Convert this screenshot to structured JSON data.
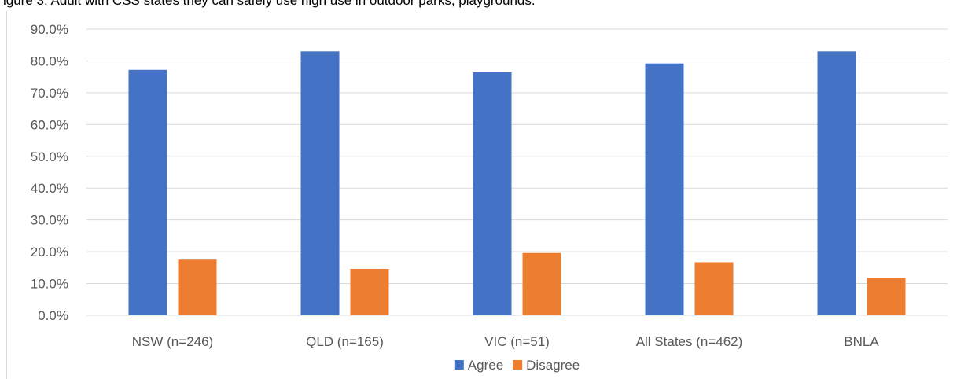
{
  "caption": "igure 3: Adult with CSS states they can safely use high use in outdoor parks, playgrounds.",
  "chart_data": {
    "type": "bar",
    "categories": [
      "NSW (n=246)",
      "QLD (n=165)",
      "VIC (n=51)",
      "All States (n=462)",
      "BNLA"
    ],
    "series": [
      {
        "name": "Agree",
        "color": "#4472c4",
        "values": [
          77.2,
          83.0,
          76.4,
          79.2,
          83.0
        ]
      },
      {
        "name": "Disagree",
        "color": "#ed7d31",
        "values": [
          17.5,
          14.6,
          19.6,
          16.7,
          11.8
        ]
      }
    ],
    "yticks": [
      "0.0%",
      "10.0%",
      "20.0%",
      "30.0%",
      "40.0%",
      "50.0%",
      "60.0%",
      "70.0%",
      "80.0%",
      "90.0%"
    ],
    "ylim": [
      0,
      90
    ],
    "grid": true,
    "gridColor": "#d9d9d9",
    "legend_position": "bottom"
  }
}
